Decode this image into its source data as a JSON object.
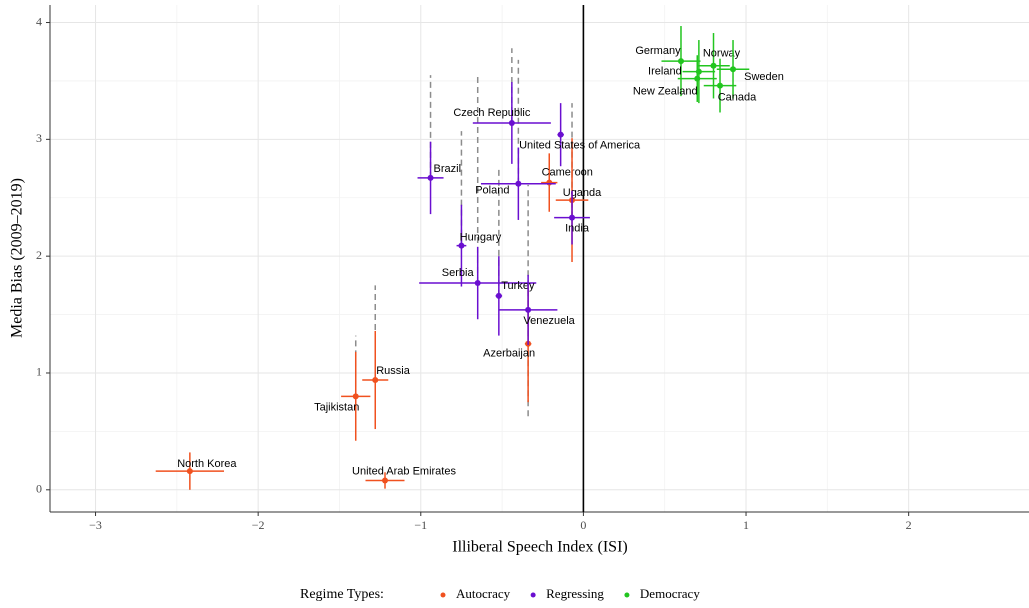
{
  "chart_data": {
    "type": "scatter",
    "x_label": "Illiberal Speech Index (ISI)",
    "y_label": "Media Bias (2009–2019)",
    "legend_title": "Regime Types:",
    "legend_position": "bottom",
    "grid": true,
    "zero_line": true,
    "xlim": [
      -3.28,
      2.74
    ],
    "ylim": [
      -0.19,
      4.15
    ],
    "xticks": [
      {
        "value": -3,
        "label": "−3"
      },
      {
        "value": -2,
        "label": "−2"
      },
      {
        "value": -1,
        "label": "−1"
      },
      0,
      1,
      2
    ],
    "yticks": [
      0,
      1,
      2,
      3,
      4
    ],
    "series": [
      {
        "name": "Autocracy",
        "color": "#f0511f",
        "labels": [
          "North Korea",
          "United Arab Emirates",
          "Tajikistan",
          "Russia",
          "Azerbaijan",
          "Cameroon",
          "Uganda"
        ],
        "x": [
          -2.42,
          -1.22,
          -1.4,
          -1.28,
          -0.34,
          -0.21,
          -0.07
        ],
        "y": [
          0.16,
          0.08,
          0.8,
          0.94,
          1.25,
          2.63,
          2.48
        ],
        "xerr": [
          0.21,
          0.12,
          0.09,
          0.08,
          0.02,
          0.05,
          0.1
        ],
        "yerr": [
          0.16,
          0.07,
          0.38,
          0.42,
          0.5,
          0.25,
          0.53
        ]
      },
      {
        "name": "Regressing",
        "color": "#6a0fd0",
        "labels": [
          "Brazil",
          "Czech Republic",
          "United States of America",
          "Poland",
          "India",
          "Hungary",
          "Serbia",
          "Turkey",
          "Venezuela"
        ],
        "x": [
          -0.94,
          -0.44,
          -0.14,
          -0.4,
          -0.07,
          -0.75,
          -0.65,
          -0.52,
          -0.34
        ],
        "y": [
          2.67,
          3.14,
          3.04,
          2.62,
          2.33,
          2.09,
          1.77,
          1.66,
          1.54
        ],
        "xerr": [
          0.08,
          0.24,
          0.02,
          0.23,
          0.11,
          0.03,
          0.36,
          0.02,
          0.18
        ],
        "yerr": [
          0.31,
          0.35,
          0.27,
          0.31,
          0.23,
          0.35,
          0.31,
          0.34,
          0.3
        ]
      },
      {
        "name": "Democracy",
        "color": "#22c51f",
        "labels": [
          "Germany",
          "Norway",
          "Ireland",
          "Sweden",
          "New Zealand",
          "Canada"
        ],
        "x": [
          0.6,
          0.8,
          0.71,
          0.92,
          0.7,
          0.84
        ],
        "y": [
          3.67,
          3.63,
          3.58,
          3.6,
          3.52,
          3.46
        ],
        "xerr": [
          0.12,
          0.1,
          0.1,
          0.1,
          0.12,
          0.1
        ],
        "yerr": [
          0.3,
          0.28,
          0.27,
          0.25,
          0.2,
          0.23
        ]
      }
    ],
    "dashed_segments": {
      "color": "#8c8c8c",
      "x": [
        -1.4,
        -1.28,
        -0.94,
        -0.75,
        -0.65,
        -0.52,
        -0.44,
        -0.4,
        -0.34,
        -0.07
      ],
      "y_low": [
        0.8,
        0.94,
        2.67,
        2.09,
        1.77,
        1.66,
        3.14,
        2.62,
        0.63,
        2.33
      ],
      "y_high": [
        1.32,
        1.75,
        3.55,
        3.07,
        3.56,
        2.76,
        3.78,
        3.68,
        2.61,
        3.31
      ]
    }
  }
}
